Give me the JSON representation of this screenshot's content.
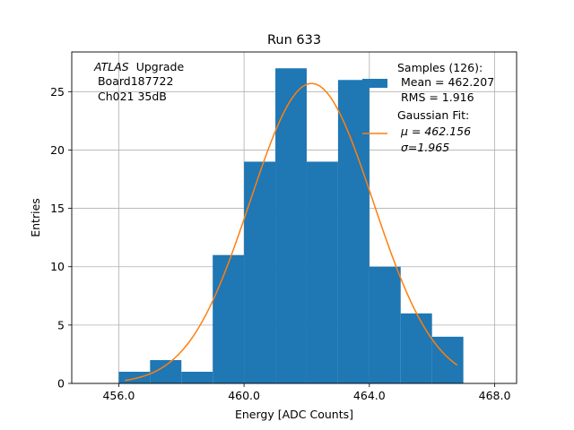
{
  "chart_data": {
    "type": "bar",
    "title": "Run 633",
    "xlabel": "Energy [ADC Counts]",
    "ylabel": "Entries",
    "xlim": [
      454.5,
      468.7
    ],
    "ylim": [
      0,
      28.4
    ],
    "xticks": [
      456.0,
      460.0,
      464.0,
      468.0
    ],
    "xtick_labels": [
      "456.0",
      "460.0",
      "464.0",
      "468.0"
    ],
    "yticks": [
      0,
      5,
      10,
      15,
      20,
      25
    ],
    "ytick_labels": [
      "0",
      "5",
      "10",
      "15",
      "20",
      "25"
    ],
    "grid": true,
    "histogram": {
      "bin_edges": [
        456.0,
        457.0,
        458.0,
        459.0,
        460.0,
        461.0,
        462.0,
        463.0,
        464.0,
        465.0,
        466.0,
        467.0
      ],
      "counts": [
        1,
        2,
        1,
        11,
        19,
        27,
        19,
        26,
        10,
        6,
        4
      ],
      "color": "#1f77b4"
    },
    "fit": {
      "type": "gaussian",
      "mu": 462.156,
      "sigma": 1.965,
      "amplitude": 25.7,
      "x_range": [
        456.2,
        466.8
      ],
      "color": "#ff7f0e"
    },
    "annotation": {
      "lines": [
        "Upgrade",
        " Board187722",
        " Ch021 35dB"
      ],
      "italic_prefix": "ATLAS"
    },
    "legend": {
      "placement": "top-right",
      "entries": [
        {
          "marker": "patch",
          "color": "#1f77b4",
          "lines": [
            "Samples (126):",
            " Mean = 462.207",
            " RMS = 1.916"
          ]
        },
        {
          "marker": "line",
          "color": "#ff7f0e",
          "lines": [
            "Gaussian Fit:",
            " μ = 462.156",
            " σ=1.965"
          ]
        }
      ]
    }
  }
}
